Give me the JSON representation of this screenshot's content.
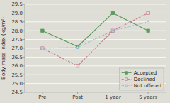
{
  "chart_data": {
    "type": "line",
    "y_label": "Body mass index (kg/m²)",
    "categories": [
      "Pre",
      "Post",
      "1 year",
      "5 years"
    ],
    "series": [
      {
        "name": "Accepted",
        "color": "#5a9a5a",
        "values": [
          28.0,
          27.1,
          29.0,
          28.0
        ],
        "marker": "square",
        "line_style": "solid"
      },
      {
        "name": "Declined",
        "color": "#c87a90",
        "values": [
          27.0,
          26.0,
          28.0,
          29.0
        ],
        "marker": "square-open",
        "line_style": "dashed"
      },
      {
        "name": "Not offered",
        "color": "#80b0d0",
        "values": [
          27.0,
          27.05,
          28.0,
          28.5
        ],
        "marker": "triangle-open",
        "line_style": "dotted"
      }
    ],
    "ylim": [
      24.5,
      29.5
    ],
    "yticks": [
      24.5,
      {
        "value": 25.0,
        "label": "25.0"
      },
      25.5,
      {
        "value": 26.0,
        "label": "26.0"
      },
      26.5,
      {
        "value": 27.0,
        "label": "27.0"
      },
      27.5,
      {
        "value": 28.0,
        "label": "28.0"
      },
      28.5,
      {
        "value": 29.0,
        "label": "29.0"
      },
      29.5
    ],
    "grid": true,
    "legend": "lower right"
  }
}
